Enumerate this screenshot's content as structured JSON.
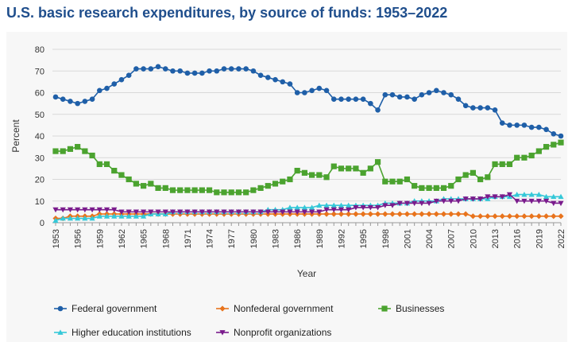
{
  "chart_data": {
    "type": "line",
    "title": "U.S. basic research expenditures, by source of funds: 1953–2022",
    "xlabel": "Year",
    "ylabel": "Percent",
    "ylim": [
      0,
      80
    ],
    "yticks": [
      0,
      10,
      20,
      30,
      40,
      50,
      60,
      70,
      80
    ],
    "xticks": [
      1953,
      1956,
      1959,
      1962,
      1965,
      1968,
      1971,
      1974,
      1977,
      1980,
      1983,
      1986,
      1989,
      1992,
      1995,
      1998,
      2001,
      2004,
      2007,
      2010,
      2013,
      2016,
      2019,
      2022
    ],
    "grid": "horizontal",
    "legend_position": "bottom",
    "x": [
      1953,
      1954,
      1955,
      1956,
      1957,
      1958,
      1959,
      1960,
      1961,
      1962,
      1963,
      1964,
      1965,
      1966,
      1967,
      1968,
      1969,
      1970,
      1971,
      1972,
      1973,
      1974,
      1975,
      1976,
      1977,
      1978,
      1979,
      1980,
      1981,
      1982,
      1983,
      1984,
      1985,
      1986,
      1987,
      1988,
      1989,
      1990,
      1991,
      1992,
      1993,
      1994,
      1995,
      1996,
      1997,
      1998,
      1999,
      2000,
      2001,
      2002,
      2003,
      2004,
      2005,
      2006,
      2007,
      2008,
      2009,
      2010,
      2011,
      2012,
      2013,
      2014,
      2015,
      2016,
      2017,
      2018,
      2019,
      2020,
      2021,
      2022
    ],
    "series": [
      {
        "name": "Federal government",
        "color": "#1f5fa8",
        "marker": "circle",
        "values": [
          58,
          57,
          56,
          55,
          56,
          57,
          61,
          62,
          64,
          66,
          68,
          71,
          71,
          71,
          72,
          71,
          70,
          70,
          69,
          69,
          69,
          70,
          70,
          71,
          71,
          71,
          71,
          70,
          68,
          67,
          66,
          65,
          64,
          60,
          60,
          61,
          62,
          61,
          57,
          57,
          57,
          57,
          57,
          55,
          52,
          59,
          59,
          58,
          58,
          57,
          59,
          60,
          61,
          60,
          59,
          57,
          54,
          53,
          53,
          53,
          52,
          46,
          45,
          45,
          45,
          44,
          44,
          43,
          41,
          40
        ]
      },
      {
        "name": "Nonfederal government",
        "color": "#e8731c",
        "marker": "diamond",
        "values": [
          2,
          2,
          3,
          3,
          3,
          3,
          4,
          4,
          4,
          4,
          4,
          4,
          4,
          4,
          4,
          4,
          4,
          4,
          4,
          4,
          4,
          4,
          4,
          4,
          4,
          4,
          4,
          4,
          4,
          4,
          4,
          4,
          4,
          4,
          4,
          4,
          4,
          4,
          4,
          4,
          4,
          4,
          4,
          4,
          4,
          4,
          4,
          4,
          4,
          4,
          4,
          4,
          4,
          4,
          4,
          4,
          4,
          3,
          3,
          3,
          3,
          3,
          3,
          3,
          3,
          3,
          3,
          3,
          3,
          3
        ]
      },
      {
        "name": "Businesses",
        "color": "#4ba32f",
        "marker": "square",
        "values": [
          33,
          33,
          34,
          35,
          33,
          31,
          27,
          27,
          24,
          22,
          20,
          18,
          17,
          18,
          16,
          16,
          15,
          15,
          15,
          15,
          15,
          15,
          14,
          14,
          14,
          14,
          14,
          15,
          16,
          17,
          18,
          19,
          20,
          24,
          23,
          22,
          22,
          21,
          26,
          25,
          25,
          25,
          23,
          25,
          28,
          19,
          19,
          19,
          20,
          17,
          16,
          16,
          16,
          16,
          17,
          20,
          22,
          23,
          20,
          21,
          27,
          27,
          27,
          30,
          30,
          31,
          33,
          35,
          36,
          37
        ]
      },
      {
        "name": "Higher education institutions",
        "color": "#35c8d8",
        "marker": "triangle-up",
        "values": [
          1,
          2,
          2,
          2,
          2,
          2,
          3,
          3,
          3,
          3,
          3,
          3,
          3,
          4,
          4,
          4,
          5,
          5,
          5,
          5,
          5,
          5,
          5,
          5,
          5,
          5,
          5,
          5,
          5,
          6,
          6,
          6,
          7,
          7,
          7,
          7,
          8,
          8,
          8,
          8,
          8,
          8,
          8,
          8,
          8,
          9,
          9,
          9,
          9,
          10,
          10,
          10,
          10,
          11,
          11,
          11,
          11,
          11,
          11,
          11,
          12,
          12,
          12,
          13,
          13,
          13,
          13,
          12,
          12,
          12
        ]
      },
      {
        "name": "Nonprofit organizations",
        "color": "#7a1b8c",
        "marker": "triangle-down",
        "values": [
          6,
          6,
          6,
          6,
          6,
          6,
          6,
          6,
          6,
          5,
          5,
          5,
          5,
          5,
          5,
          5,
          5,
          5,
          5,
          5,
          5,
          5,
          5,
          5,
          5,
          5,
          5,
          5,
          5,
          5,
          5,
          5,
          5,
          5,
          5,
          5,
          5,
          6,
          6,
          6,
          6,
          7,
          7,
          7,
          7,
          8,
          8,
          9,
          9,
          9,
          9,
          9,
          10,
          10,
          10,
          10,
          11,
          11,
          11,
          12,
          12,
          12,
          13,
          10,
          10,
          10,
          10,
          10,
          9,
          9
        ]
      }
    ]
  }
}
